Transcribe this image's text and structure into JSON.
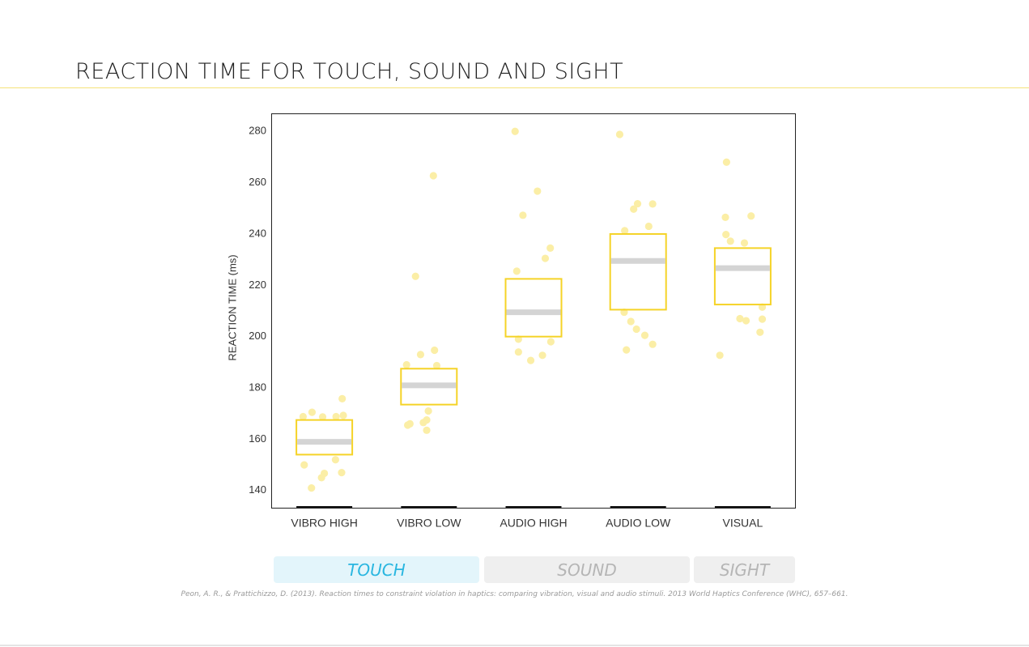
{
  "page": {
    "title": "REACTION TIME FOR TOUCH, SOUND AND SIGHT",
    "citation": "Peon, A. R., & Prattichizzo, D. (2013). Reaction times to constraint violation in haptics: comparing vibration, visual and audio stimuli. 2013 World Haptics Conference (WHC), 657–661."
  },
  "tabs": [
    {
      "label": "TOUCH",
      "active": true
    },
    {
      "label": "SOUND",
      "active": false
    },
    {
      "label": "SIGHT",
      "active": false
    }
  ],
  "colors": {
    "accent": "#f5d327",
    "dot": "#fbeea6",
    "median": "#d4d4d4",
    "tab_active_bg": "#e3f5fb",
    "tab_active_text": "#29b6e0",
    "tab_inactive_bg": "#efefef",
    "tab_inactive_text": "#b5b5b5",
    "title_rule": "#f5e27a"
  },
  "chart_data": {
    "type": "box-scatter",
    "title": "",
    "xlabel": "",
    "ylabel": "REACTION TIME (ms)",
    "ylim": [
      133.3,
      286.7
    ],
    "yticks": [
      140,
      160,
      180,
      200,
      220,
      240,
      260,
      280
    ],
    "grid": false,
    "categories": [
      "VIBRO HIGH",
      "VIBRO LOW",
      "AUDIO HIGH",
      "AUDIO LOW",
      "VISUAL"
    ],
    "boxes": [
      {
        "q1": 154,
        "median": 159,
        "q3": 167.5
      },
      {
        "q1": 173.5,
        "median": 181,
        "q3": 187.5
      },
      {
        "q1": 200,
        "median": 209.5,
        "q3": 222.5
      },
      {
        "q1": 210.5,
        "median": 229.5,
        "q3": 240
      },
      {
        "q1": 212.5,
        "median": 226.7,
        "q3": 234.5
      }
    ],
    "points": [
      [
        [
          -0.38,
          168.8
        ],
        [
          -0.22,
          170.5
        ],
        [
          -0.03,
          168.7
        ],
        [
          0.21,
          168.8
        ],
        [
          0.34,
          169.3
        ],
        [
          0.32,
          175.8
        ],
        [
          -0.36,
          150
        ],
        [
          0.2,
          152
        ],
        [
          0,
          146.7
        ],
        [
          -0.05,
          145
        ],
        [
          0.31,
          147
        ],
        [
          -0.23,
          141
        ]
      ],
      [
        [
          -0.4,
          189
        ],
        [
          0.14,
          188.7
        ],
        [
          -0.15,
          193
        ],
        [
          0.1,
          194.7
        ],
        [
          -0.01,
          171
        ],
        [
          -0.34,
          166
        ],
        [
          -0.38,
          165.5
        ],
        [
          -0.1,
          166.5
        ],
        [
          -0.04,
          167.5
        ],
        [
          -0.04,
          163.5
        ],
        [
          -0.24,
          223.5
        ],
        [
          0.08,
          262.7
        ]
      ],
      [
        [
          -0.33,
          280
        ],
        [
          0.07,
          256.7
        ],
        [
          -0.19,
          247.3
        ],
        [
          0.3,
          234.5
        ],
        [
          0.21,
          230.5
        ],
        [
          -0.3,
          225.5
        ],
        [
          -0.27,
          199
        ],
        [
          0.31,
          198
        ],
        [
          -0.27,
          194
        ],
        [
          0.16,
          192.7
        ],
        [
          -0.05,
          190.7
        ]
      ],
      [
        [
          -0.33,
          278.8
        ],
        [
          -0.24,
          241.3
        ],
        [
          0.19,
          243
        ],
        [
          -0.08,
          249.7
        ],
        [
          -0.01,
          251.8
        ],
        [
          0.26,
          251.7
        ],
        [
          -0.25,
          209.5
        ],
        [
          -0.13,
          205.9
        ],
        [
          -0.03,
          202.9
        ],
        [
          0.12,
          200.5
        ],
        [
          0.26,
          197
        ],
        [
          -0.21,
          194.8
        ]
      ],
      [
        [
          -0.29,
          268
        ],
        [
          -0.31,
          246.5
        ],
        [
          0.15,
          247
        ],
        [
          -0.3,
          239.8
        ],
        [
          -0.22,
          237.2
        ],
        [
          0.03,
          236.5
        ],
        [
          -0.05,
          207
        ],
        [
          0.06,
          206.2
        ],
        [
          0.35,
          211.5
        ],
        [
          0.35,
          206.8
        ],
        [
          0.31,
          201.7
        ],
        [
          -0.41,
          192.7
        ]
      ]
    ]
  }
}
